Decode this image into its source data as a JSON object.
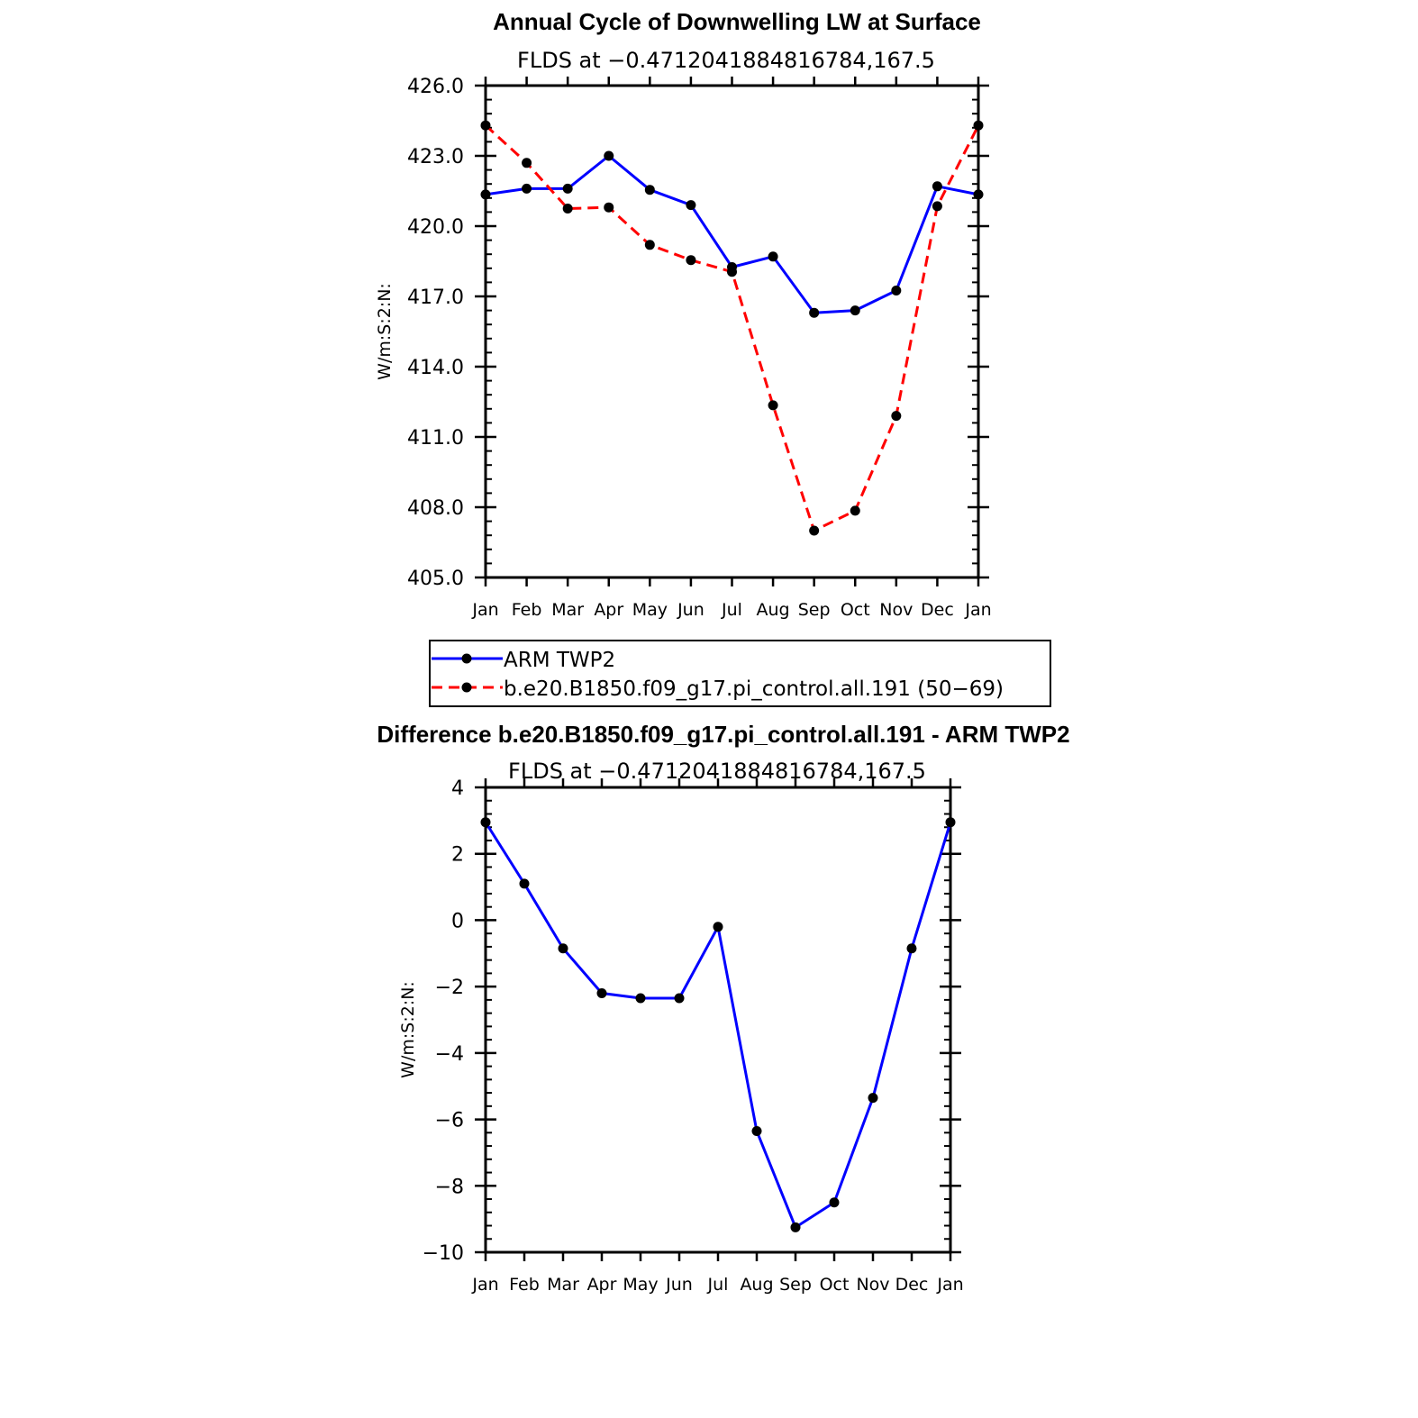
{
  "chart_data": [
    {
      "type": "line",
      "title": "Annual Cycle of Downwelling LW at Surface",
      "subtitle": "FLDS at −0.4712041884816784,167.5",
      "ylabel": "W/m:S:2:N:",
      "ylim": [
        405.0,
        426.0
      ],
      "yticks": [
        "405.0",
        "408.0",
        "411.0",
        "414.0",
        "417.0",
        "420.0",
        "423.0",
        "426.0"
      ],
      "categories": [
        "Jan",
        "Feb",
        "Mar",
        "Apr",
        "May",
        "Jun",
        "Jul",
        "Aug",
        "Sep",
        "Oct",
        "Nov",
        "Dec",
        "Jan"
      ],
      "series": [
        {
          "name": "ARM TWP2",
          "color": "#0000ff",
          "style": "solid",
          "values": [
            421.35,
            421.6,
            421.6,
            423.0,
            421.55,
            420.9,
            418.25,
            418.7,
            416.3,
            416.4,
            417.25,
            421.7,
            421.35
          ]
        },
        {
          "name": "b.e20.B1850.f09_g17.pi_control.all.191 (50−69)",
          "color": "#ff0000",
          "style": "dashed",
          "values": [
            424.3,
            422.7,
            420.75,
            420.8,
            419.2,
            418.55,
            418.05,
            412.35,
            407.0,
            407.85,
            411.9,
            420.85,
            424.3
          ]
        }
      ],
      "legend": "bottom"
    },
    {
      "type": "line",
      "title": "Difference b.e20.B1850.f09_g17.pi_control.all.191 - ARM TWP2",
      "subtitle": "FLDS at −0.4712041884816784,167.5",
      "ylabel": "W/m:S:2:N:",
      "ylim": [
        -10,
        4
      ],
      "yticks": [
        "−10",
        "−8",
        "−6",
        "−4",
        "−2",
        "0",
        "2",
        "4"
      ],
      "categories": [
        "Jan",
        "Feb",
        "Mar",
        "Apr",
        "May",
        "Jun",
        "Jul",
        "Aug",
        "Sep",
        "Oct",
        "Nov",
        "Dec",
        "Jan"
      ],
      "series": [
        {
          "color": "#0000ff",
          "style": "solid",
          "values": [
            2.95,
            1.1,
            -0.85,
            -2.2,
            -2.35,
            -2.35,
            -0.2,
            -6.35,
            -9.25,
            -8.5,
            -5.35,
            -0.85,
            2.95
          ]
        }
      ]
    }
  ]
}
